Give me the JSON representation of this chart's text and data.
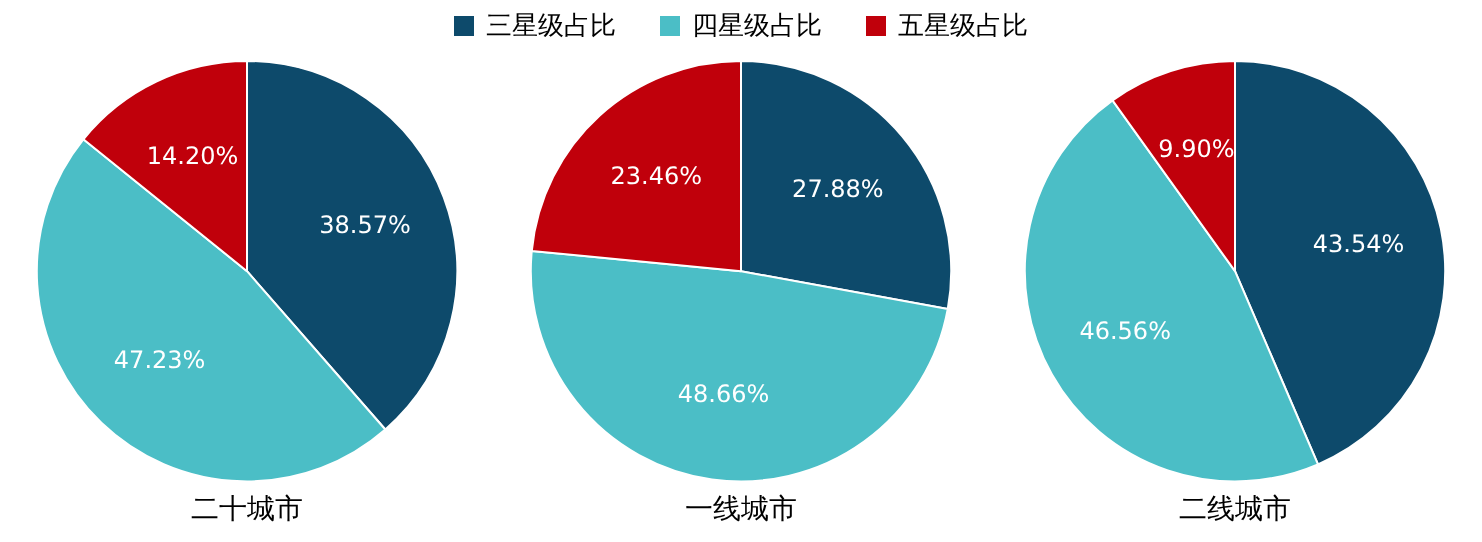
{
  "chart_data": [
    {
      "type": "pie",
      "title": "二十城市",
      "categories": [
        "三星级占比",
        "四星级占比",
        "五星级占比"
      ],
      "values": [
        38.57,
        47.23,
        14.2
      ],
      "colors": [
        "#0d4a6b",
        "#4bbec6",
        "#c0000b"
      ],
      "value_labels": [
        "38.57%",
        "47.23%",
        "14.20%"
      ],
      "legend": "top"
    },
    {
      "type": "pie",
      "title": "一线城市",
      "categories": [
        null,
        null,
        null
      ],
      "values": [
        27.88,
        48.66,
        23.46
      ],
      "colors": [
        "#0d4a6b",
        "#4bbec6",
        "#c0000b"
      ],
      "value_labels": [
        "27.88%",
        "48.66%",
        "23.46%"
      ],
      "legend": false
    },
    {
      "type": "pie",
      "title": "二线城市",
      "categories": [
        null,
        null,
        null
      ],
      "values": [
        43.54,
        46.56,
        9.9
      ],
      "colors": [
        "#0d4a6b",
        "#4bbec6",
        "#c0000b"
      ],
      "value_labels": [
        "43.54%",
        "46.56%",
        "9.90%"
      ],
      "legend": false
    }
  ]
}
